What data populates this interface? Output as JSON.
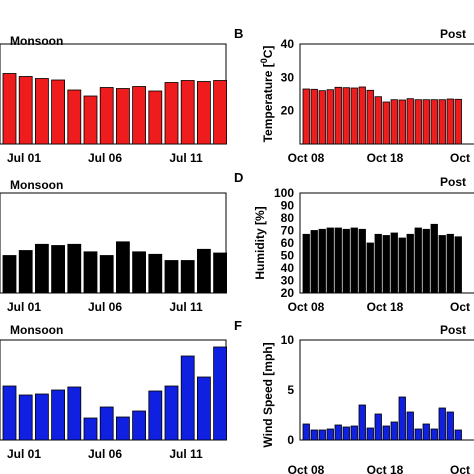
{
  "chart_data": [
    {
      "panel": "A",
      "type": "bar",
      "title": "Monsoon",
      "color": "#ee1c1c",
      "xlabel": "",
      "ylabel": "",
      "ylim": [
        20,
        40
      ],
      "xticks": [
        "Jul 01",
        "Jul 06",
        "Jul 11"
      ],
      "values": [
        34.1,
        33.5,
        33.1,
        32.8,
        30.8,
        29.6,
        31.3,
        31.1,
        31.5,
        30.6,
        32.3,
        32.7,
        32.5,
        32.7
      ],
      "panel_label": ""
    },
    {
      "panel": "B",
      "type": "bar",
      "title": "Post",
      "color": "#ee1c1c",
      "xlabel": "",
      "ylabel": "Temperature [°C]",
      "ylabel_parts": {
        "prefix": "Temperature [",
        "sup": "0",
        "suffix": "C]"
      },
      "ylim": [
        10,
        40
      ],
      "yticks": [
        20,
        30,
        40
      ],
      "xticks": [
        "Oct 08",
        "Oct 18",
        "Oct"
      ],
      "values": [
        26.5,
        26.4,
        26.0,
        26.3,
        27.0,
        26.9,
        26.8,
        27.1,
        26.1,
        24.2,
        22.6,
        23.3,
        23.2,
        23.6,
        23.3,
        23.3,
        23.3,
        23.3,
        23.5,
        23.4
      ],
      "panel_label": "B"
    },
    {
      "panel": "C",
      "type": "bar",
      "title": "Monsoon",
      "color": "#000000",
      "xlabel": "",
      "ylabel": "",
      "ylim": [
        20,
        100
      ],
      "xticks": [
        "Jul 01",
        "Jul 06",
        "Jul 11"
      ],
      "values": [
        50,
        54,
        59,
        58,
        59,
        53,
        50,
        61,
        53,
        51,
        46,
        46,
        55,
        52
      ],
      "panel_label": ""
    },
    {
      "panel": "D",
      "type": "bar",
      "title": "Post",
      "color": "#000000",
      "xlabel": "",
      "ylabel": "Humidity [%]",
      "ylim": [
        20,
        100
      ],
      "yticks": [
        20,
        30,
        40,
        50,
        60,
        70,
        80,
        90,
        100
      ],
      "xticks": [
        "Oct 08",
        "Oct 18",
        "Oct"
      ],
      "values": [
        67,
        70,
        71,
        72,
        72,
        71,
        72,
        71,
        60,
        67,
        66,
        68,
        64,
        67,
        72,
        71,
        75,
        66,
        67,
        65
      ],
      "panel_label": "D"
    },
    {
      "panel": "E",
      "type": "bar",
      "title": "Monsoon",
      "color": "#1020e0",
      "xlabel": "",
      "ylabel": "",
      "ylim": [
        0,
        10
      ],
      "xticks": [
        "Jul 01",
        "Jul 06",
        "Jul 11"
      ],
      "values": [
        5.4,
        4.5,
        4.6,
        5.0,
        5.3,
        2.2,
        3.3,
        2.3,
        2.9,
        4.9,
        5.4,
        8.4,
        6.3,
        9.3
      ],
      "panel_label": ""
    },
    {
      "panel": "F",
      "type": "bar",
      "title": "Post",
      "color": "#1020e0",
      "xlabel": "",
      "ylabel": "Wind Speed [mph]",
      "ylim": [
        0,
        10
      ],
      "yticks": [
        0,
        5,
        10
      ],
      "xticks": [
        "Oct 08",
        "Oct 18",
        "Oct"
      ],
      "values": [
        1.6,
        1.0,
        1.0,
        1.1,
        1.5,
        1.3,
        1.4,
        3.5,
        1.2,
        2.6,
        1.4,
        1.8,
        4.3,
        2.8,
        1.1,
        1.6,
        1.1,
        3.2,
        2.8,
        1.0
      ],
      "panel_label": "F"
    }
  ]
}
